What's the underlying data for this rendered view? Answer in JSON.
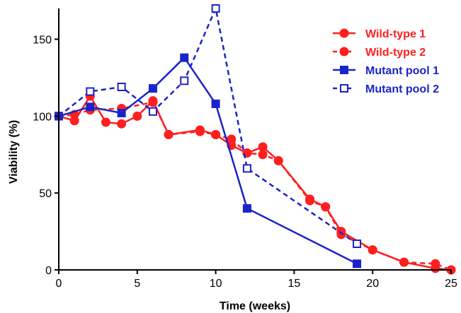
{
  "chart_data": {
    "type": "line",
    "title": "",
    "xlabel": "Time (weeks)",
    "ylabel": "Viability (%)",
    "xlim": [
      0,
      25
    ],
    "ylim": [
      0,
      170
    ],
    "xticks": [
      0,
      5,
      10,
      15,
      20,
      25
    ],
    "yticks": [
      0,
      50,
      100,
      150
    ],
    "grid": false,
    "legend_position": "top-right",
    "series": [
      {
        "name": "Wild-type 1",
        "color": "#ff1f1f",
        "line": "solid",
        "marker": "circle-filled",
        "x": [
          0,
          1,
          2,
          3,
          4,
          5,
          6,
          7,
          9,
          10,
          11,
          12,
          13,
          14,
          16,
          17,
          18,
          20,
          22,
          24,
          25
        ],
        "y": [
          100,
          97,
          113,
          96,
          95,
          100,
          110,
          88,
          91,
          88,
          81,
          76,
          80,
          71,
          46,
          41,
          25,
          13,
          5,
          1,
          0
        ]
      },
      {
        "name": "Wild-type 2",
        "color": "#ff1f1f",
        "line": "dashed",
        "marker": "circle-filled",
        "x": [
          0,
          1,
          2,
          4,
          6,
          7,
          9,
          10,
          11,
          12,
          13,
          14,
          16,
          17,
          18,
          20,
          22,
          24,
          25
        ],
        "y": [
          100,
          101,
          104,
          105,
          109,
          88,
          90,
          88,
          85,
          76,
          75,
          71,
          45,
          41,
          23,
          13,
          5,
          4,
          0
        ]
      },
      {
        "name": "Mutant pool 1",
        "color": "#1a24c8",
        "line": "solid",
        "marker": "square-filled",
        "x": [
          0,
          2,
          4,
          6,
          8,
          10,
          12,
          19
        ],
        "y": [
          100,
          106,
          102,
          118,
          138,
          108,
          40,
          4
        ]
      },
      {
        "name": "Mutant pool 2",
        "color": "#1a24c8",
        "line": "dashed",
        "marker": "square-open",
        "x": [
          0,
          2,
          4,
          6,
          8,
          10,
          12,
          19
        ],
        "y": [
          100,
          116,
          119,
          103,
          123,
          170,
          66,
          17
        ]
      }
    ]
  }
}
